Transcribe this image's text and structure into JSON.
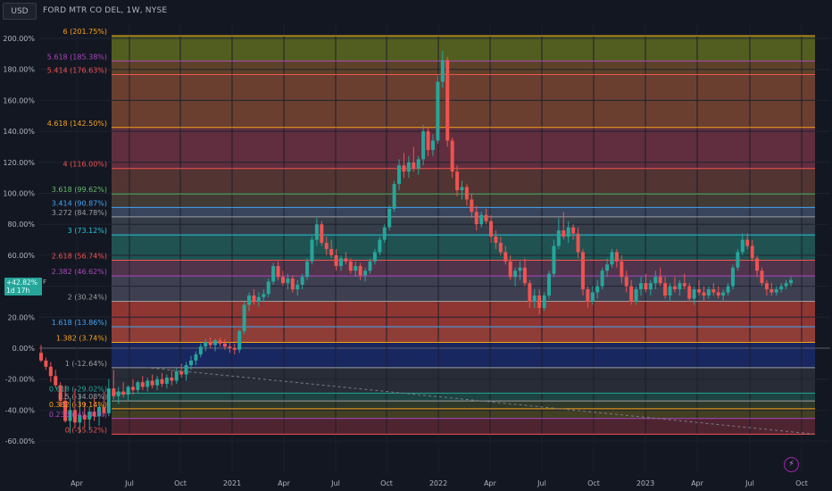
{
  "header": {
    "currency": "USD",
    "title": "FORD MTR CO DEL, 1W, NYSE"
  },
  "price_tag": {
    "line1": "+42.82%",
    "line2": "1d 17h",
    "flag": "F"
  },
  "colors": {
    "up": "#26a69a",
    "down": "#ef5350",
    "background": "#131722"
  },
  "chart_data": {
    "type": "candlestick",
    "title": "FORD MTR CO DEL, 1W, NYSE",
    "ylabel": "%",
    "ylim": [
      -60,
      205
    ],
    "y_ticks": [
      "200.00%",
      "180.00%",
      "160.00%",
      "140.00%",
      "120.00%",
      "100.00%",
      "80.00%",
      "60.00%",
      "40.00%",
      "20.00%",
      "0.00%",
      "-20.00%",
      "-40.00%",
      "-60.00%"
    ],
    "y_tick_values": [
      200,
      180,
      160,
      140,
      120,
      100,
      80,
      60,
      40,
      20,
      0,
      -20,
      -40,
      -60
    ],
    "x_ticks": [
      "Apr",
      "Jul",
      "Oct",
      "2021",
      "Apr",
      "Jul",
      "Oct",
      "2022",
      "Apr",
      "Jul",
      "Oct",
      "2023",
      "Apr",
      "Jul",
      "Oct"
    ],
    "fib_levels": [
      {
        "label": "6 (201.75%)",
        "ratio": 6,
        "value": 201.75,
        "color": "#f7a21b"
      },
      {
        "label": "5.618 (185.38%)",
        "ratio": 5.618,
        "value": 185.38,
        "color": "#ab47bc"
      },
      {
        "label": "5.414 (176.63%)",
        "ratio": 5.414,
        "value": 176.63,
        "color": "#ef5350"
      },
      {
        "label": "4.618 (142.50%)",
        "ratio": 4.618,
        "value": 142.5,
        "color": "#f7a21b"
      },
      {
        "label": "4 (116.00%)",
        "ratio": 4,
        "value": 116.0,
        "color": "#ef5350"
      },
      {
        "label": "3.618 (99.62%)",
        "ratio": 3.618,
        "value": 99.62,
        "color": "#66bb6a"
      },
      {
        "label": "3.414 (90.87%)",
        "ratio": 3.414,
        "value": 90.87,
        "color": "#42a5f5"
      },
      {
        "label": "3.272 (84.78%)",
        "ratio": 3.272,
        "value": 84.78,
        "color": "#9e9e9e"
      },
      {
        "label": "3 (73.12%)",
        "ratio": 3,
        "value": 73.12,
        "color": "#26c6da"
      },
      {
        "label": "2.618 (56.74%)",
        "ratio": 2.618,
        "value": 56.74,
        "color": "#ef5350"
      },
      {
        "label": "2.382 (46.62%)",
        "ratio": 2.382,
        "value": 46.62,
        "color": "#ab47bc"
      },
      {
        "label": "2 (30.24%)",
        "ratio": 2,
        "value": 30.24,
        "color": "#9e9e9e"
      },
      {
        "label": "1.618 (13.86%)",
        "ratio": 1.618,
        "value": 13.86,
        "color": "#42a5f5"
      },
      {
        "label": "1.382 (3.74%)",
        "ratio": 1.382,
        "value": 3.74,
        "color": "#f7a21b"
      },
      {
        "label": "1 (-12.64%)",
        "ratio": 1,
        "value": -12.64,
        "color": "#9e9e9e"
      },
      {
        "label": "0.618 (-29.02%)",
        "ratio": 0.618,
        "value": -29.02,
        "color": "#26a69a"
      },
      {
        "label": "0.5 (-34.08%)",
        "ratio": 0.5,
        "value": -34.08,
        "color": "#9e9e9e"
      },
      {
        "label": "0.382 (-39.14%)",
        "ratio": 0.382,
        "value": -39.14,
        "color": "#f7a21b"
      },
      {
        "label": "0.236 (-45.41%)",
        "ratio": 0.236,
        "value": -45.41,
        "color": "#ab47bc"
      },
      {
        "label": "0 (-55.52%)",
        "ratio": 0,
        "value": -55.52,
        "color": "#ef5350"
      }
    ],
    "fib_bands": [
      {
        "from": 185.38,
        "to": 201.75,
        "color": "#5e6b1e"
      },
      {
        "from": 176.63,
        "to": 185.38,
        "color": "#6b4a2a"
      },
      {
        "from": 142.5,
        "to": 176.63,
        "color": "#7a4632"
      },
      {
        "from": 116.0,
        "to": 142.5,
        "color": "#6e3343"
      },
      {
        "from": 99.62,
        "to": 116.0,
        "color": "#5e3a35"
      },
      {
        "from": 90.87,
        "to": 99.62,
        "color": "#4e4138"
      },
      {
        "from": 84.78,
        "to": 90.87,
        "color": "#3f4c66"
      },
      {
        "from": 73.12,
        "to": 84.78,
        "color": "#3c4450"
      },
      {
        "from": 56.74,
        "to": 73.12,
        "color": "#235d5a"
      },
      {
        "from": 46.62,
        "to": 56.74,
        "color": "#5c3a52"
      },
      {
        "from": 30.24,
        "to": 46.62,
        "color": "#46485a"
      },
      {
        "from": 13.86,
        "to": 30.24,
        "color": "#a63c35"
      },
      {
        "from": 3.74,
        "to": 13.86,
        "color": "#a4443b"
      },
      {
        "from": -12.64,
        "to": 3.74,
        "color": "#1b2a6b"
      },
      {
        "from": -29.02,
        "to": -12.64,
        "color": "#2c3039"
      },
      {
        "from": -34.08,
        "to": -29.02,
        "color": "#1f4a46"
      },
      {
        "from": -39.14,
        "to": -34.08,
        "color": "#35402c"
      },
      {
        "from": -45.41,
        "to": -39.14,
        "color": "#4b4623"
      },
      {
        "from": -55.52,
        "to": -45.41,
        "color": "#5b2734"
      }
    ],
    "trendline": {
      "from": [
        0.135,
        -12.5
      ],
      "to": [
        0.98,
        -55.5
      ]
    },
    "candles": [
      {
        "o": -3,
        "h": 2,
        "l": -9,
        "c": -8
      },
      {
        "o": -8,
        "h": -6,
        "l": -14,
        "c": -12
      },
      {
        "o": -12,
        "h": -9,
        "l": -22,
        "c": -18
      },
      {
        "o": -18,
        "h": -14,
        "l": -26,
        "c": -24
      },
      {
        "o": -24,
        "h": -22,
        "l": -38,
        "c": -34
      },
      {
        "o": -34,
        "h": -24,
        "l": -48,
        "c": -47
      },
      {
        "o": -47,
        "h": -32,
        "l": -55,
        "c": -40
      },
      {
        "o": -40,
        "h": -26,
        "l": -52,
        "c": -48
      },
      {
        "o": -48,
        "h": -30,
        "l": -55,
        "c": -43
      },
      {
        "o": -43,
        "h": -35,
        "l": -51,
        "c": -46
      },
      {
        "o": -46,
        "h": -38,
        "l": -53,
        "c": -41
      },
      {
        "o": -41,
        "h": -32,
        "l": -47,
        "c": -44
      },
      {
        "o": -44,
        "h": -36,
        "l": -50,
        "c": -38
      },
      {
        "o": -38,
        "h": -28,
        "l": -44,
        "c": -42
      },
      {
        "o": -42,
        "h": -20,
        "l": -44,
        "c": -26
      },
      {
        "o": -26,
        "h": -14,
        "l": -33,
        "c": -31
      },
      {
        "o": -31,
        "h": -25,
        "l": -36,
        "c": -28
      },
      {
        "o": -28,
        "h": -22,
        "l": -32,
        "c": -30
      },
      {
        "o": -30,
        "h": -24,
        "l": -34,
        "c": -25
      },
      {
        "o": -25,
        "h": -20,
        "l": -30,
        "c": -27
      },
      {
        "o": -27,
        "h": -21,
        "l": -29,
        "c": -22
      },
      {
        "o": -22,
        "h": -18,
        "l": -27,
        "c": -25
      },
      {
        "o": -25,
        "h": -19,
        "l": -28,
        "c": -21
      },
      {
        "o": -21,
        "h": -17,
        "l": -26,
        "c": -24
      },
      {
        "o": -24,
        "h": -18,
        "l": -27,
        "c": -20
      },
      {
        "o": -20,
        "h": -16,
        "l": -25,
        "c": -23
      },
      {
        "o": -23,
        "h": -17,
        "l": -26,
        "c": -19
      },
      {
        "o": -19,
        "h": -14,
        "l": -24,
        "c": -21
      },
      {
        "o": -21,
        "h": -13,
        "l": -23,
        "c": -15
      },
      {
        "o": -15,
        "h": -10,
        "l": -19,
        "c": -17
      },
      {
        "o": -17,
        "h": -9,
        "l": -21,
        "c": -11
      },
      {
        "o": -11,
        "h": -5,
        "l": -14,
        "c": -8
      },
      {
        "o": -8,
        "h": -2,
        "l": -11,
        "c": -4
      },
      {
        "o": -4,
        "h": 3,
        "l": -6,
        "c": 1
      },
      {
        "o": 1,
        "h": 6,
        "l": -2,
        "c": 4
      },
      {
        "o": 4,
        "h": 7,
        "l": 0,
        "c": 2
      },
      {
        "o": 2,
        "h": 6,
        "l": -2,
        "c": 5
      },
      {
        "o": 5,
        "h": 7,
        "l": 1,
        "c": 3
      },
      {
        "o": 3,
        "h": 6,
        "l": -1,
        "c": 1
      },
      {
        "o": 1,
        "h": 4,
        "l": -3,
        "c": 0
      },
      {
        "o": 0,
        "h": 3,
        "l": -4,
        "c": -1
      },
      {
        "o": -1,
        "h": 12,
        "l": -3,
        "c": 11
      },
      {
        "o": 11,
        "h": 30,
        "l": 9,
        "c": 28
      },
      {
        "o": 28,
        "h": 36,
        "l": 24,
        "c": 34
      },
      {
        "o": 34,
        "h": 38,
        "l": 28,
        "c": 30
      },
      {
        "o": 30,
        "h": 36,
        "l": 27,
        "c": 33
      },
      {
        "o": 33,
        "h": 38,
        "l": 30,
        "c": 35
      },
      {
        "o": 35,
        "h": 45,
        "l": 33,
        "c": 43
      },
      {
        "o": 43,
        "h": 55,
        "l": 41,
        "c": 53
      },
      {
        "o": 53,
        "h": 56,
        "l": 44,
        "c": 46
      },
      {
        "o": 46,
        "h": 50,
        "l": 40,
        "c": 42
      },
      {
        "o": 42,
        "h": 48,
        "l": 38,
        "c": 45
      },
      {
        "o": 45,
        "h": 47,
        "l": 36,
        "c": 38
      },
      {
        "o": 38,
        "h": 44,
        "l": 34,
        "c": 41
      },
      {
        "o": 41,
        "h": 48,
        "l": 38,
        "c": 46
      },
      {
        "o": 46,
        "h": 58,
        "l": 44,
        "c": 56
      },
      {
        "o": 56,
        "h": 72,
        "l": 54,
        "c": 70
      },
      {
        "o": 70,
        "h": 84,
        "l": 66,
        "c": 80
      },
      {
        "o": 80,
        "h": 82,
        "l": 66,
        "c": 68
      },
      {
        "o": 68,
        "h": 72,
        "l": 60,
        "c": 64
      },
      {
        "o": 64,
        "h": 70,
        "l": 58,
        "c": 60
      },
      {
        "o": 60,
        "h": 64,
        "l": 50,
        "c": 53
      },
      {
        "o": 53,
        "h": 60,
        "l": 50,
        "c": 58
      },
      {
        "o": 58,
        "h": 62,
        "l": 54,
        "c": 56
      },
      {
        "o": 56,
        "h": 58,
        "l": 48,
        "c": 50
      },
      {
        "o": 50,
        "h": 56,
        "l": 46,
        "c": 53
      },
      {
        "o": 53,
        "h": 55,
        "l": 44,
        "c": 47
      },
      {
        "o": 47,
        "h": 52,
        "l": 43,
        "c": 50
      },
      {
        "o": 50,
        "h": 58,
        "l": 48,
        "c": 56
      },
      {
        "o": 56,
        "h": 64,
        "l": 54,
        "c": 62
      },
      {
        "o": 62,
        "h": 72,
        "l": 60,
        "c": 70
      },
      {
        "o": 70,
        "h": 80,
        "l": 68,
        "c": 78
      },
      {
        "o": 78,
        "h": 92,
        "l": 76,
        "c": 90
      },
      {
        "o": 90,
        "h": 108,
        "l": 88,
        "c": 106
      },
      {
        "o": 106,
        "h": 122,
        "l": 102,
        "c": 118
      },
      {
        "o": 118,
        "h": 126,
        "l": 110,
        "c": 114
      },
      {
        "o": 114,
        "h": 124,
        "l": 110,
        "c": 120
      },
      {
        "o": 120,
        "h": 130,
        "l": 114,
        "c": 116
      },
      {
        "o": 116,
        "h": 124,
        "l": 112,
        "c": 122
      },
      {
        "o": 122,
        "h": 144,
        "l": 118,
        "c": 140
      },
      {
        "o": 140,
        "h": 142,
        "l": 124,
        "c": 128
      },
      {
        "o": 128,
        "h": 138,
        "l": 124,
        "c": 134
      },
      {
        "o": 134,
        "h": 176,
        "l": 132,
        "c": 172
      },
      {
        "o": 172,
        "h": 192,
        "l": 168,
        "c": 186
      },
      {
        "o": 186,
        "h": 188,
        "l": 130,
        "c": 134
      },
      {
        "o": 134,
        "h": 136,
        "l": 110,
        "c": 114
      },
      {
        "o": 114,
        "h": 118,
        "l": 98,
        "c": 102
      },
      {
        "o": 102,
        "h": 108,
        "l": 96,
        "c": 104
      },
      {
        "o": 104,
        "h": 106,
        "l": 92,
        "c": 96
      },
      {
        "o": 96,
        "h": 100,
        "l": 84,
        "c": 88
      },
      {
        "o": 88,
        "h": 92,
        "l": 76,
        "c": 80
      },
      {
        "o": 80,
        "h": 88,
        "l": 78,
        "c": 86
      },
      {
        "o": 86,
        "h": 90,
        "l": 80,
        "c": 82
      },
      {
        "o": 82,
        "h": 86,
        "l": 68,
        "c": 72
      },
      {
        "o": 72,
        "h": 76,
        "l": 64,
        "c": 68
      },
      {
        "o": 68,
        "h": 72,
        "l": 60,
        "c": 62
      },
      {
        "o": 62,
        "h": 66,
        "l": 54,
        "c": 56
      },
      {
        "o": 56,
        "h": 60,
        "l": 44,
        "c": 46
      },
      {
        "o": 46,
        "h": 52,
        "l": 40,
        "c": 50
      },
      {
        "o": 50,
        "h": 56,
        "l": 44,
        "c": 52
      },
      {
        "o": 52,
        "h": 58,
        "l": 40,
        "c": 42
      },
      {
        "o": 42,
        "h": 44,
        "l": 26,
        "c": 30
      },
      {
        "o": 30,
        "h": 38,
        "l": 26,
        "c": 34
      },
      {
        "o": 34,
        "h": 38,
        "l": 22,
        "c": 26
      },
      {
        "o": 26,
        "h": 36,
        "l": 24,
        "c": 34
      },
      {
        "o": 34,
        "h": 50,
        "l": 32,
        "c": 48
      },
      {
        "o": 48,
        "h": 70,
        "l": 46,
        "c": 66
      },
      {
        "o": 66,
        "h": 84,
        "l": 64,
        "c": 76
      },
      {
        "o": 76,
        "h": 88,
        "l": 70,
        "c": 72
      },
      {
        "o": 72,
        "h": 82,
        "l": 68,
        "c": 78
      },
      {
        "o": 78,
        "h": 80,
        "l": 70,
        "c": 74
      },
      {
        "o": 74,
        "h": 78,
        "l": 58,
        "c": 62
      },
      {
        "o": 62,
        "h": 64,
        "l": 34,
        "c": 38
      },
      {
        "o": 38,
        "h": 40,
        "l": 26,
        "c": 30
      },
      {
        "o": 30,
        "h": 40,
        "l": 28,
        "c": 36
      },
      {
        "o": 36,
        "h": 44,
        "l": 32,
        "c": 40
      },
      {
        "o": 40,
        "h": 52,
        "l": 38,
        "c": 50
      },
      {
        "o": 50,
        "h": 58,
        "l": 46,
        "c": 54
      },
      {
        "o": 54,
        "h": 64,
        "l": 52,
        "c": 62
      },
      {
        "o": 62,
        "h": 64,
        "l": 52,
        "c": 56
      },
      {
        "o": 56,
        "h": 60,
        "l": 42,
        "c": 46
      },
      {
        "o": 46,
        "h": 50,
        "l": 36,
        "c": 40
      },
      {
        "o": 40,
        "h": 44,
        "l": 28,
        "c": 30
      },
      {
        "o": 30,
        "h": 40,
        "l": 28,
        "c": 38
      },
      {
        "o": 38,
        "h": 46,
        "l": 34,
        "c": 42
      },
      {
        "o": 42,
        "h": 48,
        "l": 36,
        "c": 38
      },
      {
        "o": 38,
        "h": 44,
        "l": 34,
        "c": 42
      },
      {
        "o": 42,
        "h": 50,
        "l": 38,
        "c": 46
      },
      {
        "o": 46,
        "h": 52,
        "l": 40,
        "c": 42
      },
      {
        "o": 42,
        "h": 46,
        "l": 32,
        "c": 34
      },
      {
        "o": 34,
        "h": 42,
        "l": 30,
        "c": 40
      },
      {
        "o": 40,
        "h": 46,
        "l": 36,
        "c": 38
      },
      {
        "o": 38,
        "h": 44,
        "l": 34,
        "c": 42
      },
      {
        "o": 42,
        "h": 48,
        "l": 38,
        "c": 40
      },
      {
        "o": 40,
        "h": 42,
        "l": 30,
        "c": 32
      },
      {
        "o": 32,
        "h": 40,
        "l": 28,
        "c": 38
      },
      {
        "o": 38,
        "h": 44,
        "l": 34,
        "c": 36
      },
      {
        "o": 36,
        "h": 40,
        "l": 30,
        "c": 34
      },
      {
        "o": 34,
        "h": 40,
        "l": 32,
        "c": 38
      },
      {
        "o": 38,
        "h": 42,
        "l": 34,
        "c": 36
      },
      {
        "o": 36,
        "h": 40,
        "l": 32,
        "c": 34
      },
      {
        "o": 34,
        "h": 38,
        "l": 30,
        "c": 36
      },
      {
        "o": 36,
        "h": 42,
        "l": 34,
        "c": 40
      },
      {
        "o": 40,
        "h": 54,
        "l": 38,
        "c": 52
      },
      {
        "o": 52,
        "h": 64,
        "l": 50,
        "c": 62
      },
      {
        "o": 62,
        "h": 74,
        "l": 60,
        "c": 70
      },
      {
        "o": 70,
        "h": 74,
        "l": 64,
        "c": 66
      },
      {
        "o": 66,
        "h": 70,
        "l": 56,
        "c": 58
      },
      {
        "o": 58,
        "h": 60,
        "l": 46,
        "c": 50
      },
      {
        "o": 50,
        "h": 52,
        "l": 40,
        "c": 42
      },
      {
        "o": 42,
        "h": 44,
        "l": 34,
        "c": 38
      },
      {
        "o": 38,
        "h": 42,
        "l": 34,
        "c": 36
      },
      {
        "o": 36,
        "h": 40,
        "l": 34,
        "c": 38
      },
      {
        "o": 38,
        "h": 42,
        "l": 36,
        "c": 40
      },
      {
        "o": 40,
        "h": 44,
        "l": 38,
        "c": 42
      },
      {
        "o": 42,
        "h": 46,
        "l": 40,
        "c": 44
      }
    ]
  }
}
